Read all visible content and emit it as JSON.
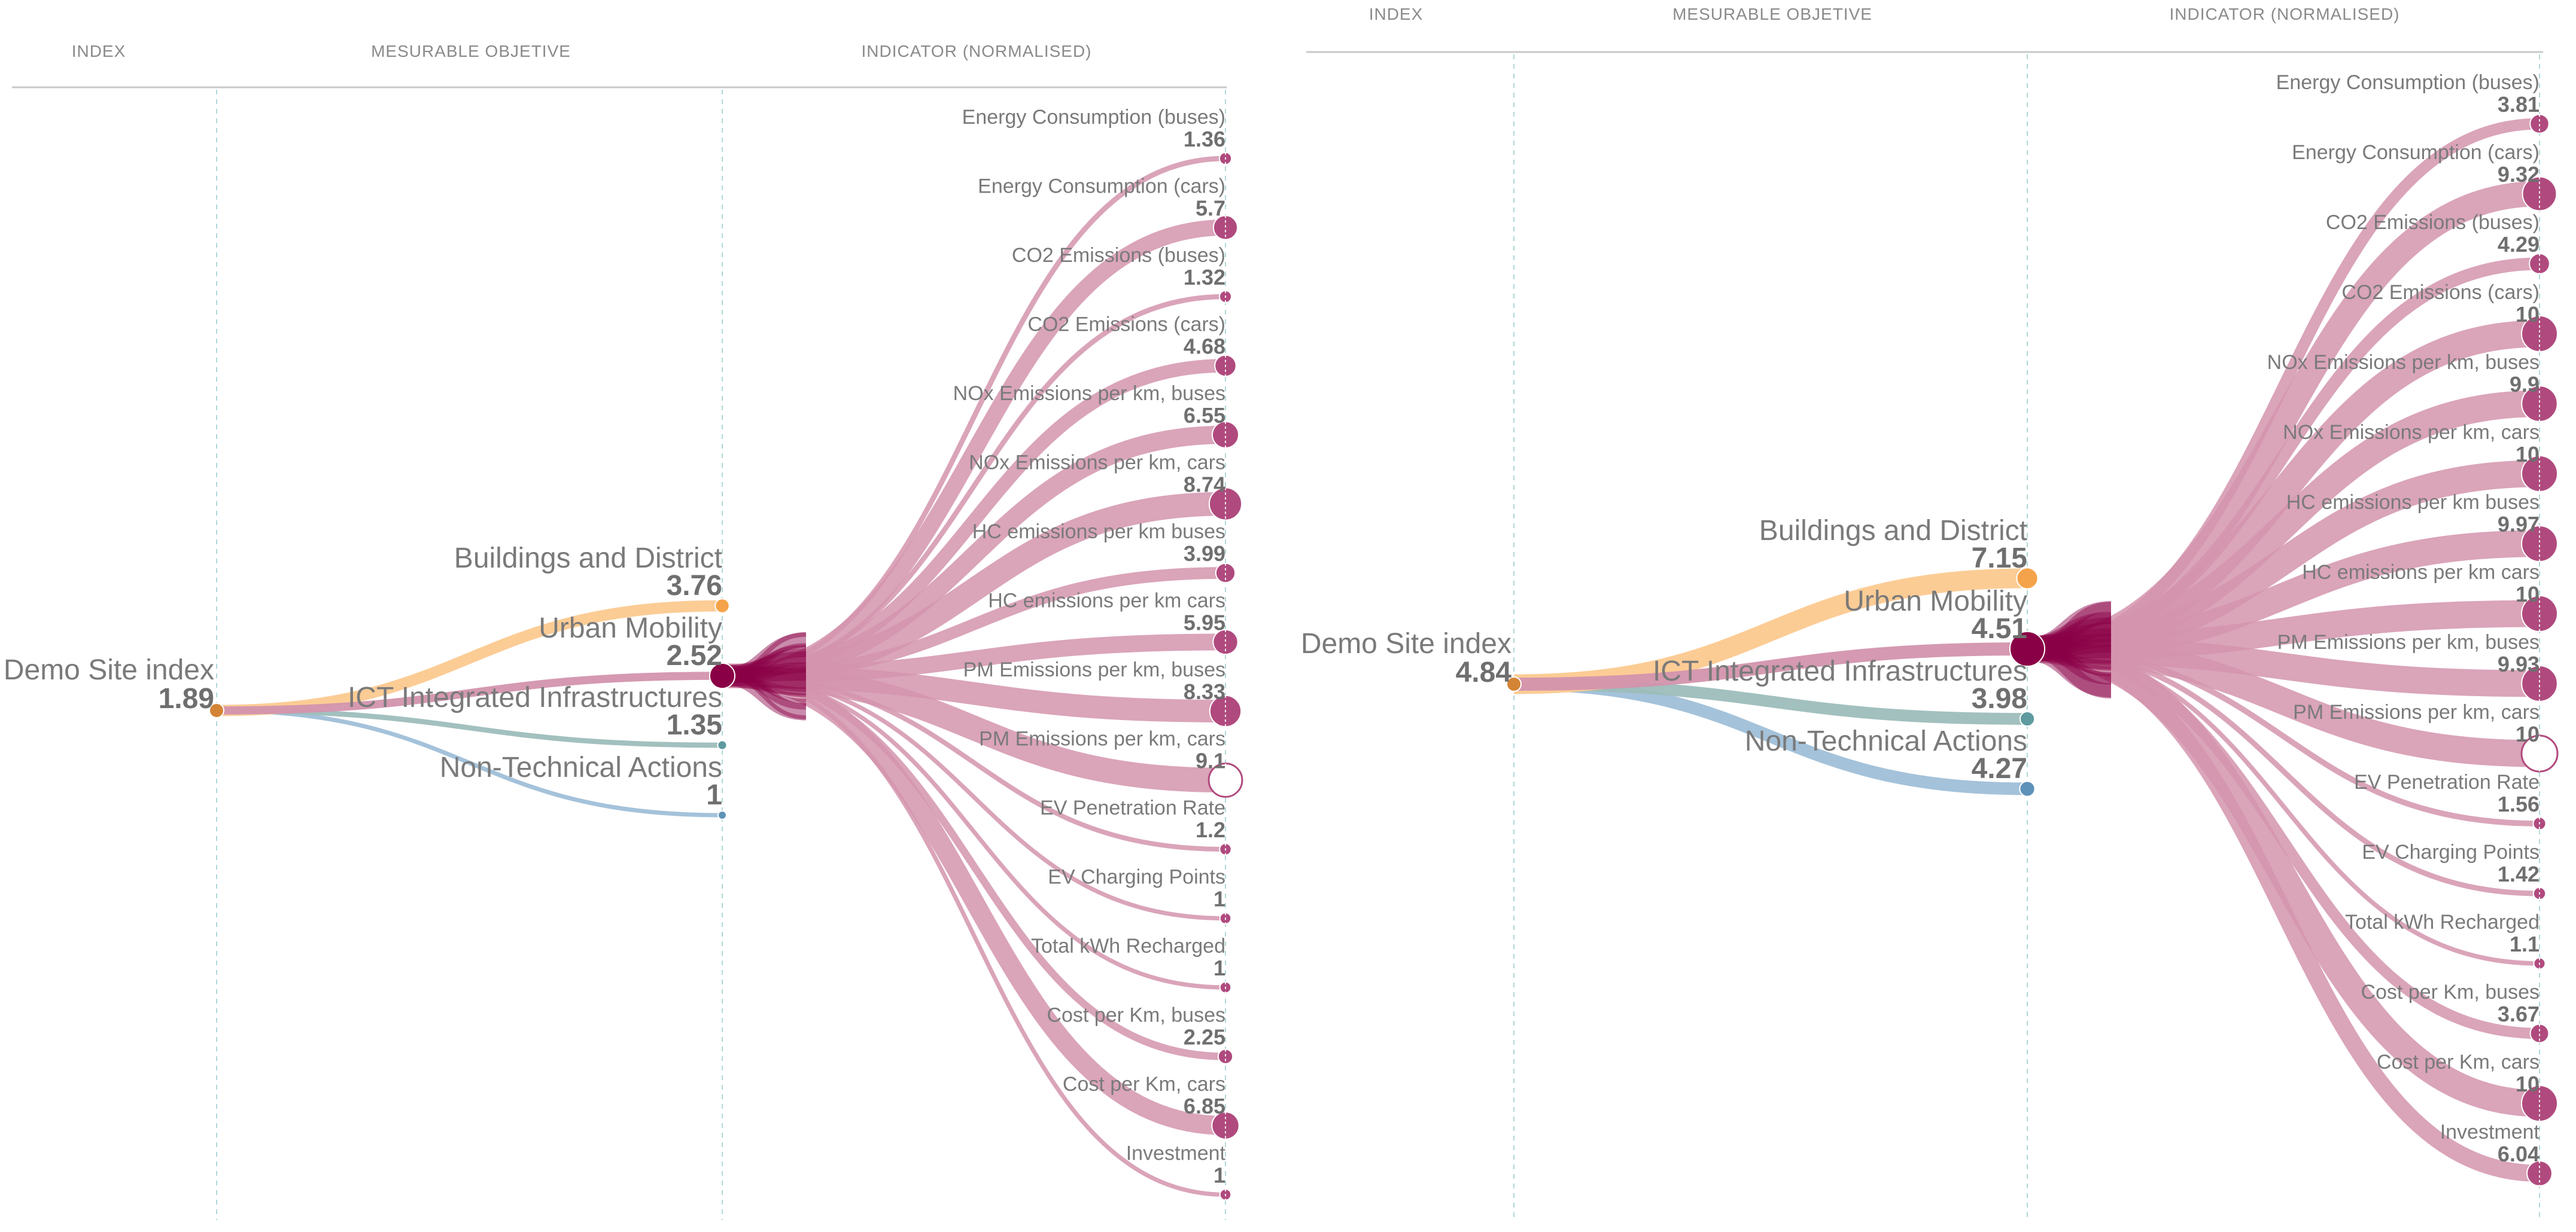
{
  "headers": {
    "index": "INDEX",
    "objective": "MESURABLE OBJETIVE",
    "indicator": "INDICATOR (NORMALISED)"
  },
  "colors": {
    "buildings": "#fcc98f",
    "mobility": "#d394ad",
    "ict": "#9dbdbb",
    "nontech": "#9fbfd8",
    "indicator": "#d394ad",
    "hub": "#8a0046",
    "indicatorNode": "#b04a7e",
    "buildingsNode": "#f5a34a",
    "ictNode": "#5e9a9f",
    "nontechNode": "#5f92b8",
    "rootNode": "#d48435"
  },
  "panels": [
    {
      "root": {
        "name": "Demo Site index",
        "value": "1.89"
      },
      "objectives": [
        {
          "name": "Buildings and District",
          "value": "3.76",
          "key": "buildings"
        },
        {
          "name": "Urban Mobility",
          "value": "2.52",
          "key": "mobility"
        },
        {
          "name": "ICT Integrated Infrastructures",
          "value": "1.35",
          "key": "ict"
        },
        {
          "name": "Non-Technical Actions",
          "value": "1",
          "key": "nontech"
        }
      ],
      "indicators": [
        {
          "name": "Energy Consumption (buses)",
          "value": "1.36"
        },
        {
          "name": "Energy Consumption (cars)",
          "value": "5.7"
        },
        {
          "name": "CO2 Emissions (buses)",
          "value": "1.32"
        },
        {
          "name": "CO2 Emissions (cars)",
          "value": "4.68"
        },
        {
          "name": "NOx Emissions per km, buses",
          "value": "6.55"
        },
        {
          "name": "NOx Emissions per km, cars",
          "value": "8.74"
        },
        {
          "name": "HC emissions per km buses",
          "value": "3.99"
        },
        {
          "name": "HC emissions per km cars",
          "value": "5.95"
        },
        {
          "name": "PM Emissions per km, buses",
          "value": "8.33"
        },
        {
          "name": "PM Emissions per km, cars",
          "value": "9.1"
        },
        {
          "name": "EV Penetration Rate",
          "value": "1.2"
        },
        {
          "name": "EV Charging Points",
          "value": "1"
        },
        {
          "name": "Total kWh Recharged",
          "value": "1"
        },
        {
          "name": "Cost per Km, buses",
          "value": "2.25"
        },
        {
          "name": "Cost per Km, cars",
          "value": "6.85"
        },
        {
          "name": "Investment",
          "value": "1"
        }
      ]
    },
    {
      "root": {
        "name": "Demo Site index",
        "value": "4.84"
      },
      "objectives": [
        {
          "name": "Buildings and District",
          "value": "7.15",
          "key": "buildings"
        },
        {
          "name": "Urban Mobility",
          "value": "4.51",
          "key": "mobility"
        },
        {
          "name": "ICT Integrated Infrastructures",
          "value": "3.98",
          "key": "ict"
        },
        {
          "name": "Non-Technical Actions",
          "value": "4.27",
          "key": "nontech"
        }
      ],
      "indicators": [
        {
          "name": "Energy Consumption (buses)",
          "value": "3.81"
        },
        {
          "name": "Energy Consumption (cars)",
          "value": "9.32"
        },
        {
          "name": "CO2 Emissions (buses)",
          "value": "4.29"
        },
        {
          "name": "CO2 Emissions (cars)",
          "value": "10"
        },
        {
          "name": "NOx Emissions per km, buses",
          "value": "9.9"
        },
        {
          "name": "NOx Emissions per km, cars",
          "value": "10"
        },
        {
          "name": "HC emissions per km buses",
          "value": "9.97"
        },
        {
          "name": "HC emissions per km cars",
          "value": "10"
        },
        {
          "name": "PM Emissions per km, buses",
          "value": "9.93"
        },
        {
          "name": "PM Emissions per km, cars",
          "value": "10"
        },
        {
          "name": "EV Penetration Rate",
          "value": "1.56"
        },
        {
          "name": "EV Charging Points",
          "value": "1.42"
        },
        {
          "name": "Total kWh Recharged",
          "value": "1.1"
        },
        {
          "name": "Cost per Km, buses",
          "value": "3.67"
        },
        {
          "name": "Cost per Km, cars",
          "value": "10"
        },
        {
          "name": "Investment",
          "value": "6.04"
        }
      ]
    }
  ]
}
